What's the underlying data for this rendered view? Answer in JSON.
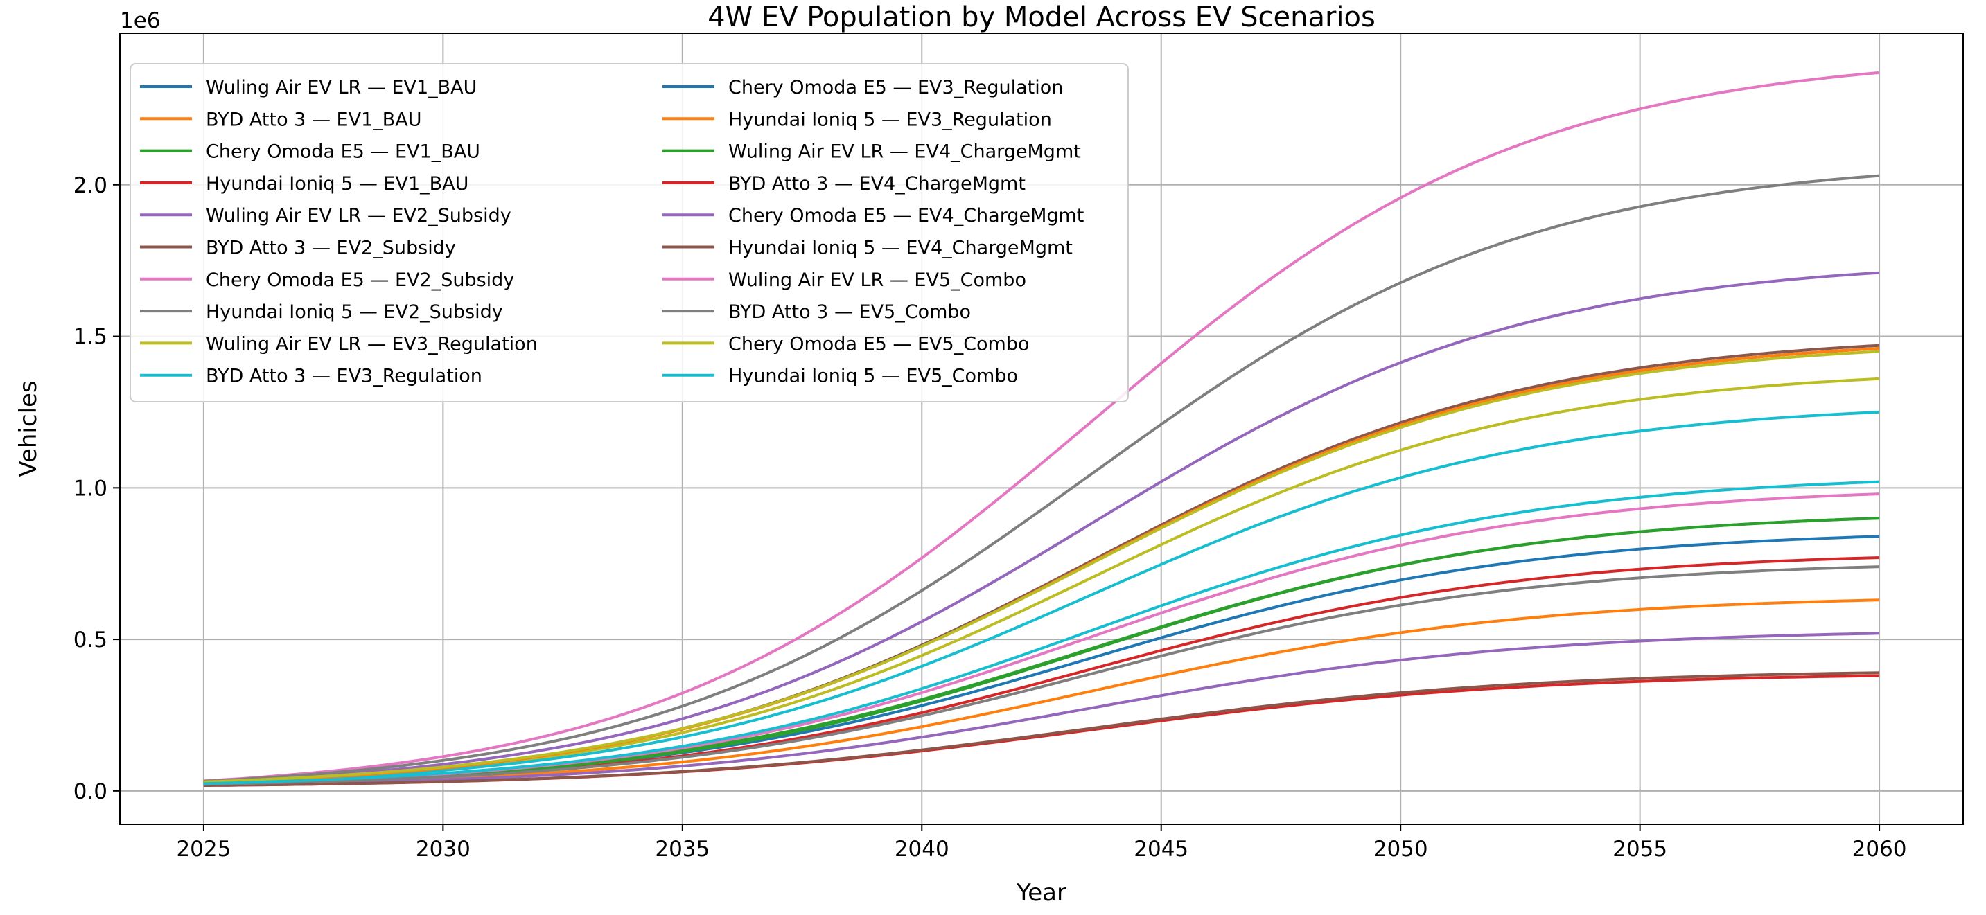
{
  "chart_data": {
    "type": "line",
    "title": "4W EV Population by Model Across EV Scenarios",
    "xlabel": "Year",
    "ylabel": "Vehicles",
    "y_multiplier": "1e6",
    "xlim": [
      2023.25,
      2061.75
    ],
    "ylim": [
      -0.11,
      2.5
    ],
    "grid": true,
    "legend_position": "upper-left",
    "legend_columns": 2,
    "x_ticks": [
      2025,
      2030,
      2035,
      2040,
      2045,
      2050,
      2055,
      2060
    ],
    "x_tick_labels": [
      "2025",
      "2030",
      "2035",
      "2040",
      "2045",
      "2050",
      "2055",
      "2060"
    ],
    "y_ticks": [
      0,
      0.5,
      1.0,
      1.5,
      2.0
    ],
    "y_tick_labels": [
      "0.0",
      "0.5",
      "1.0",
      "1.5",
      "2.0"
    ],
    "x": [
      2025,
      2027.5,
      2030,
      2032.5,
      2035,
      2037.5,
      2040,
      2042.5,
      2045,
      2047.5,
      2050,
      2052.5,
      2055,
      2057.5,
      2060
    ],
    "series": [
      {
        "name": "Wuling Air EV LR — EV1_BAU",
        "color": "#1f77b4",
        "start": 0.025,
        "end": 0.84
      },
      {
        "name": "BYD Atto 3 — EV1_BAU",
        "color": "#ff7f0e",
        "start": 0.02,
        "end": 0.63
      },
      {
        "name": "Chery Omoda E5 — EV1_BAU",
        "color": "#2ca02c",
        "start": 0.027,
        "end": 0.9
      },
      {
        "name": "Hyundai Ioniq 5 — EV1_BAU",
        "color": "#d62728",
        "start": 0.023,
        "end": 0.77
      },
      {
        "name": "Wuling Air EV LR — EV2_Subsidy",
        "color": "#9467bd",
        "start": 0.03,
        "end": 1.71
      },
      {
        "name": "BYD Atto 3 — EV2_Subsidy",
        "color": "#8c564b",
        "start": 0.027,
        "end": 1.47
      },
      {
        "name": "Chery Omoda E5 — EV2_Subsidy",
        "color": "#e377c2",
        "start": 0.033,
        "end": 2.37
      },
      {
        "name": "Hyundai Ioniq 5 — EV2_Subsidy",
        "color": "#7f7f7f",
        "start": 0.032,
        "end": 2.03
      },
      {
        "name": "Wuling Air EV LR — EV3_Regulation",
        "color": "#bcbd22",
        "start": 0.027,
        "end": 1.36
      },
      {
        "name": "BYD Atto 3 — EV3_Regulation",
        "color": "#17becf",
        "start": 0.026,
        "end": 1.25
      },
      {
        "name": "Chery Omoda E5 — EV3_Regulation",
        "color": "#1f77b4",
        "start": 0.027,
        "end": 1.46
      },
      {
        "name": "Hyundai Ioniq 5 — EV3_Regulation",
        "color": "#ff7f0e",
        "start": 0.026,
        "end": 1.46
      },
      {
        "name": "Wuling Air EV LR — EV4_ChargeMgmt",
        "color": "#2ca02c",
        "start": 0.02,
        "end": 0.9
      },
      {
        "name": "BYD Atto 3 — EV4_ChargeMgmt",
        "color": "#d62728",
        "start": 0.018,
        "end": 0.38
      },
      {
        "name": "Chery Omoda E5 — EV4_ChargeMgmt",
        "color": "#9467bd",
        "start": 0.02,
        "end": 0.52
      },
      {
        "name": "Hyundai Ioniq 5 — EV4_ChargeMgmt",
        "color": "#8c564b",
        "start": 0.018,
        "end": 0.39
      },
      {
        "name": "Wuling Air EV LR — EV5_Combo",
        "color": "#e377c2",
        "start": 0.023,
        "end": 0.98
      },
      {
        "name": "BYD Atto 3 — EV5_Combo",
        "color": "#7f7f7f",
        "start": 0.022,
        "end": 0.74
      },
      {
        "name": "Chery Omoda E5 — EV5_Combo",
        "color": "#bcbd22",
        "start": 0.03,
        "end": 1.45
      },
      {
        "name": "Hyundai Ioniq 5 — EV5_Combo",
        "color": "#17becf",
        "start": 0.024,
        "end": 1.02
      }
    ]
  }
}
